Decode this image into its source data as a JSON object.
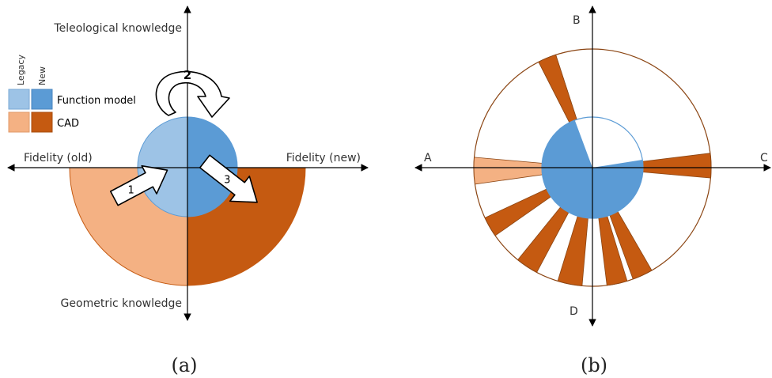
{
  "panel_a": {
    "axis_top": "Teleological knowledge",
    "axis_bottom": "Geometric knowledge",
    "axis_left": "Fidelity (old)",
    "axis_right": "Fidelity (new)",
    "legend": {
      "col_legacy": "Legacy",
      "col_new": "New",
      "row_function": "Function model",
      "row_cad": "CAD"
    },
    "arrow_1": "1",
    "arrow_2": "2",
    "arrow_3": "3",
    "caption": "(a)"
  },
  "panel_b": {
    "label_top": "B",
    "label_left": "A",
    "label_right": "C",
    "label_bottom": "D",
    "caption": "(b)"
  },
  "colors": {
    "legacy_function": "#9dc3e6",
    "new_function": "#5b9bd5",
    "legacy_cad": "#f4b183",
    "new_cad": "#c55a11"
  }
}
